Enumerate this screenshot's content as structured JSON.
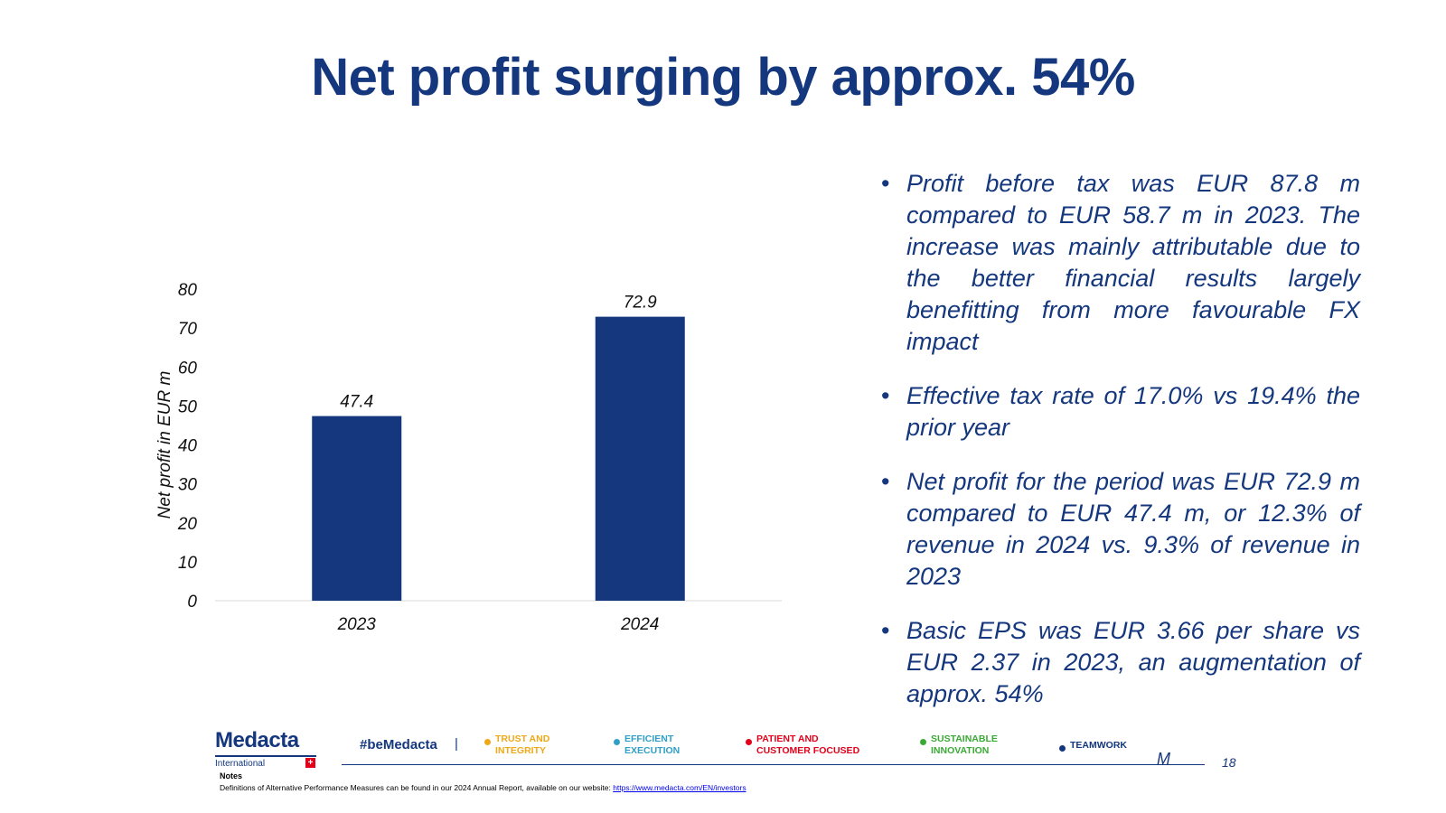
{
  "slide": {
    "title": "Net profit surging by approx. 54%",
    "page_number": "18"
  },
  "chart_data": {
    "type": "bar",
    "categories": [
      "2023",
      "2024"
    ],
    "values": [
      47.4,
      72.9
    ],
    "data_labels": [
      "47.4",
      "72.9"
    ],
    "xlabel": "",
    "ylabel": "Net profit in EUR m",
    "ylim": [
      0,
      80
    ],
    "yticks": [
      0,
      10,
      20,
      30,
      40,
      50,
      60,
      70,
      80
    ],
    "grid": false,
    "legend": "none",
    "bar_color": "#14377d"
  },
  "bullets": [
    "Profit before tax was EUR 87.8 m compared to EUR 58.7 m in 2023. The increase was mainly attributable due to the better financial results largely benefitting from more favourable FX impact",
    "Effective tax rate of 17.0% vs 19.4% the prior year",
    "Net profit for the period was EUR 72.9 m compared to EUR 47.4 m, or 12.3% of revenue in 2024 vs. 9.3% of revenue in 2023",
    "Basic EPS was EUR 3.66 per share vs EUR 2.37 in 2023, an augmentation of approx. 54%"
  ],
  "footer": {
    "logo_text": "Medacta",
    "logo_sub": "International",
    "flag_symbol": "+",
    "hashtag": "#beMedacta",
    "separator": "|",
    "values": [
      {
        "line1": "TRUST AND",
        "line2": "INTEGRITY",
        "color": "#f0a818"
      },
      {
        "line1": "EFFICIENT",
        "line2": "EXECUTION",
        "color": "#2f9fc7"
      },
      {
        "line1": "PATIENT AND",
        "line2": "CUSTOMER FOCUSED",
        "color": "#e2001a"
      },
      {
        "line1": "SUSTAINABLE",
        "line2": "INNOVATION",
        "color": "#3aa935"
      },
      {
        "line1": "TEAMWORK",
        "line2": "",
        "color": "#14377d"
      }
    ],
    "mark": "M",
    "notes_label": "Notes",
    "notes_text": "Definitions of Alternative Performance Measures can be found in our 2024 Annual Report, available on our website: ",
    "notes_link": "https://www.medacta.com/EN/investors"
  }
}
